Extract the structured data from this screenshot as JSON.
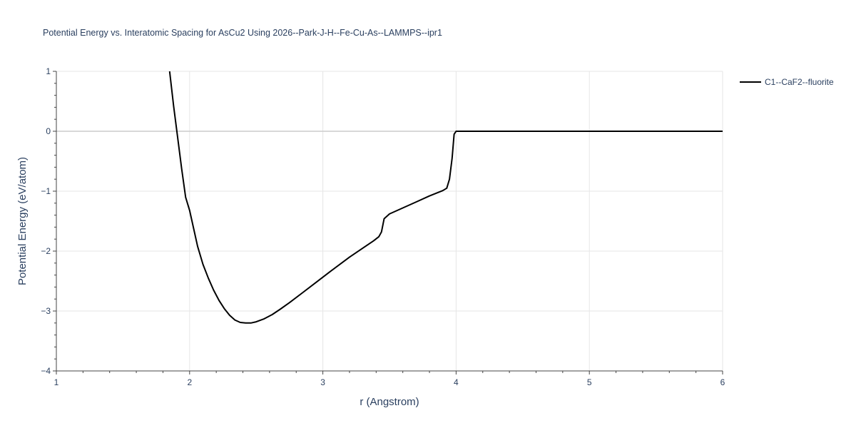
{
  "chart_data": {
    "type": "line",
    "title": "Potential Energy vs. Interatomic Spacing for AsCu2 Using 2026--Park-J-H--Fe-Cu-As--LAMMPS--ipr1",
    "xlabel": "r (Angstrom)",
    "ylabel": "Potential Energy (eV/atom)",
    "xlim": [
      1,
      6
    ],
    "ylim": [
      -4,
      1
    ],
    "xticks": [
      1,
      2,
      3,
      4,
      5,
      6
    ],
    "yticks": [
      1,
      0,
      -1,
      -2,
      -3,
      -4
    ],
    "xtick_labels": [
      "1",
      "2",
      "3",
      "4",
      "5",
      "6"
    ],
    "ytick_labels": [
      "1",
      "0",
      "−1",
      "−2",
      "−3",
      "−4"
    ],
    "grid": true,
    "legend_position": "top-right",
    "series": [
      {
        "name": "C1--CaF2--fluorite",
        "color": "#000000",
        "x": [
          1.85,
          1.88,
          1.91,
          1.94,
          1.97,
          2.0,
          2.03,
          2.06,
          2.1,
          2.14,
          2.18,
          2.22,
          2.26,
          2.3,
          2.34,
          2.38,
          2.42,
          2.46,
          2.5,
          2.56,
          2.62,
          2.68,
          2.75,
          2.85,
          2.95,
          3.05,
          3.2,
          3.3,
          3.38,
          3.42,
          3.44,
          3.46,
          3.5,
          3.6,
          3.7,
          3.8,
          3.9,
          3.93,
          3.95,
          3.97,
          3.985,
          4.0,
          4.5,
          5.0,
          5.5,
          6.0
        ],
        "y": [
          1.0,
          0.42,
          -0.1,
          -0.62,
          -1.1,
          -1.32,
          -1.62,
          -1.92,
          -2.22,
          -2.45,
          -2.65,
          -2.82,
          -2.96,
          -3.07,
          -3.15,
          -3.19,
          -3.2,
          -3.2,
          -3.18,
          -3.13,
          -3.06,
          -2.97,
          -2.86,
          -2.69,
          -2.52,
          -2.35,
          -2.1,
          -1.95,
          -1.83,
          -1.76,
          -1.68,
          -1.46,
          -1.38,
          -1.28,
          -1.18,
          -1.08,
          -0.99,
          -0.95,
          -0.8,
          -0.45,
          -0.05,
          0.0,
          0.0,
          0.0,
          0.0,
          0.0
        ]
      }
    ]
  }
}
